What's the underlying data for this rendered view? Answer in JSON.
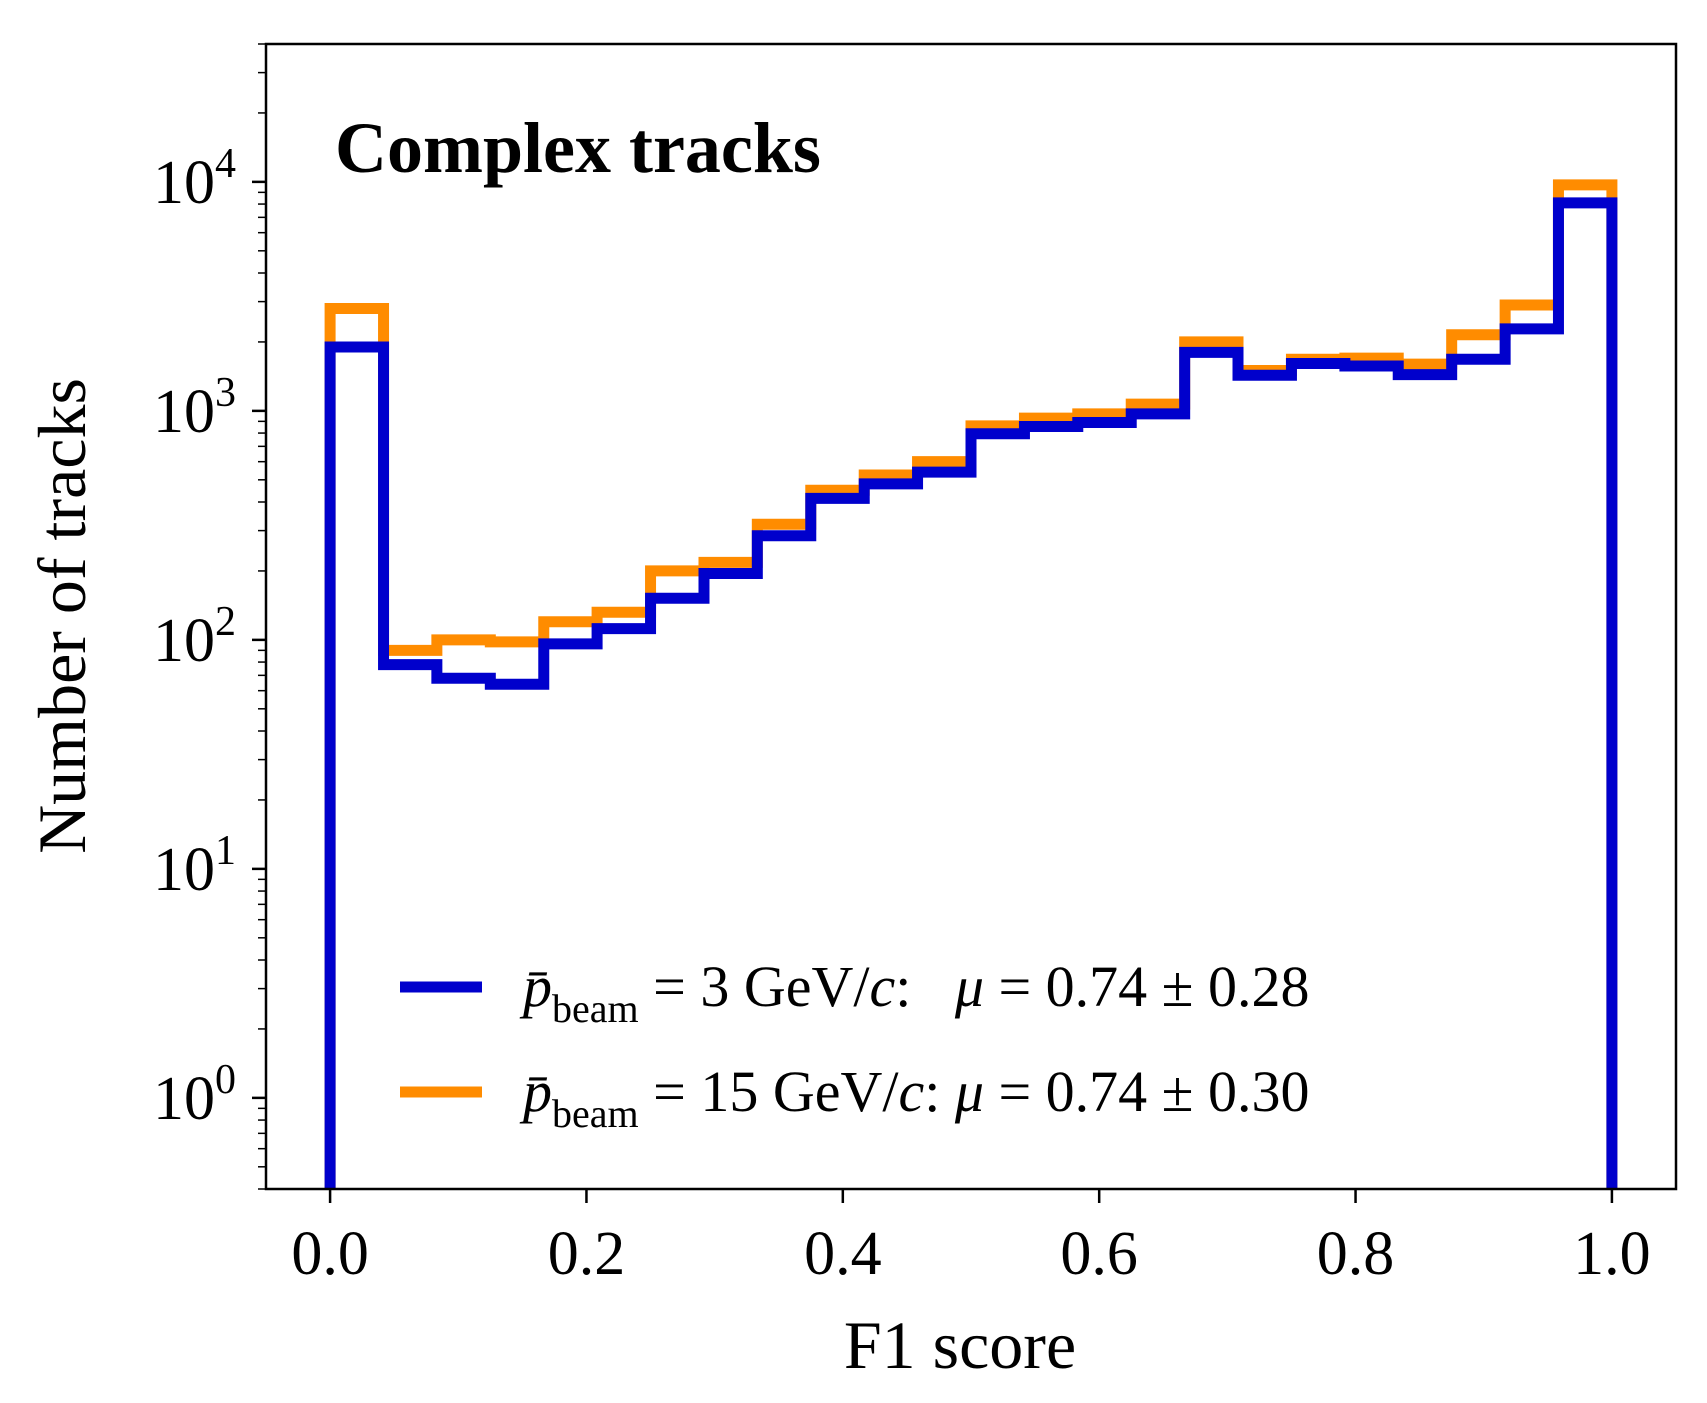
{
  "chart_data": {
    "type": "histogram",
    "annotation": "Complex tracks",
    "xlabel": "F1 score",
    "ylabel": "Number of tracks",
    "xlim": [
      -0.05,
      1.05
    ],
    "ylim": [
      0.4,
      40000
    ],
    "yscale": "log",
    "xticks": [
      "0.0",
      "0.2",
      "0.4",
      "0.6",
      "0.8",
      "1.0"
    ],
    "yticks": [
      {
        "value": 1,
        "base": "10",
        "exp": "0"
      },
      {
        "value": 10,
        "base": "10",
        "exp": "1"
      },
      {
        "value": 100,
        "base": "10",
        "exp": "2"
      },
      {
        "value": 1000,
        "base": "10",
        "exp": "3"
      },
      {
        "value": 10000,
        "base": "10",
        "exp": "4"
      }
    ],
    "bin_edges": [
      0.0,
      0.0417,
      0.0833,
      0.125,
      0.1667,
      0.2083,
      0.25,
      0.2917,
      0.3333,
      0.375,
      0.4167,
      0.4583,
      0.5,
      0.5417,
      0.5833,
      0.625,
      0.6667,
      0.7083,
      0.75,
      0.7917,
      0.8333,
      0.875,
      0.9167,
      0.9583,
      1.0
    ],
    "series": [
      {
        "color": "#ff8c00",
        "values": [
          2800,
          90,
          100,
          98,
          120,
          132,
          200,
          218,
          320,
          450,
          525,
          600,
          860,
          930,
          970,
          1070,
          2000,
          1500,
          1680,
          1700,
          1600,
          2150,
          2900,
          9700
        ],
        "legend": {
          "p": "p̄",
          "sub": "beam",
          "eq": " = 15 GeV/",
          "c": "c",
          "mid": ": ",
          "mu": "μ",
          "rest": " = 0.74 ± 0.30"
        }
      },
      {
        "color": "#0000cc",
        "values": [
          1900,
          78,
          68,
          64,
          96,
          112,
          152,
          195,
          285,
          415,
          480,
          540,
          795,
          855,
          890,
          970,
          1800,
          1430,
          1610,
          1570,
          1440,
          1680,
          2280,
          8100
        ],
        "legend": {
          "p": "p̄",
          "sub": "beam",
          "eq": " = 3 GeV/",
          "c": "c",
          "mid": ":   ",
          "mu": "μ",
          "rest": " = 0.74 ± 0.28"
        }
      }
    ]
  }
}
